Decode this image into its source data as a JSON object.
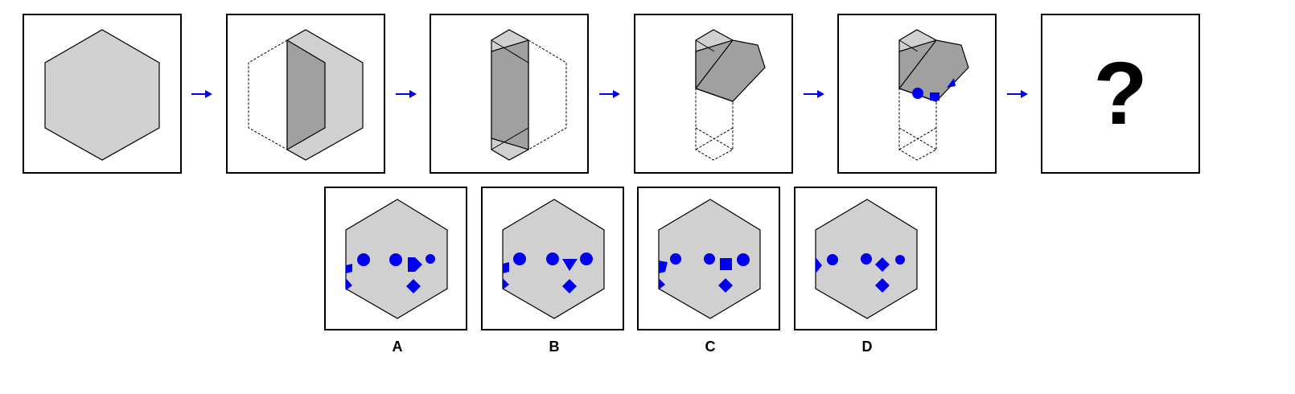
{
  "question_mark": "?",
  "options": [
    {
      "label": "A"
    },
    {
      "label": "B"
    },
    {
      "label": "C"
    },
    {
      "label": "D"
    }
  ],
  "colors": {
    "paper_fill": "#d0d0d0",
    "folded_fill": "#a0a0a0",
    "mark_color": "#0000ee",
    "arrow_color": "#0000ee",
    "outline": "#000000"
  },
  "icons": {
    "arrow": "right-arrow-icon",
    "marks": [
      "circle-mark",
      "square-mark",
      "diamond-mark",
      "triangle-mark"
    ]
  }
}
